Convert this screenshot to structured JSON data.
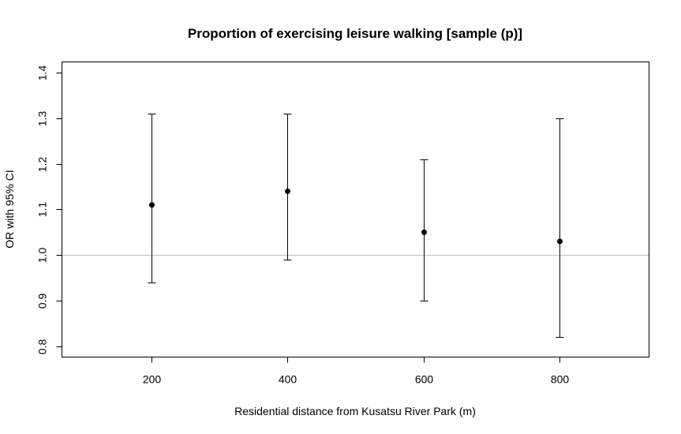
{
  "chart_data": {
    "type": "scatter",
    "subtype": "point-with-error-bars",
    "title": "Proportion of exercising leisure walking [sample (p)]",
    "xlabel": "Residential distance from Kusatsu River Park (m)",
    "ylabel": "OR with 95% CI",
    "xlim": [
      100,
      900
    ],
    "ylim": [
      0.8,
      1.4
    ],
    "xticks": [
      200,
      400,
      600,
      800
    ],
    "xtick_labels": [
      "200",
      "400",
      "600",
      "800"
    ],
    "yticks": [
      0.8,
      0.9,
      1.0,
      1.1,
      1.2,
      1.3,
      1.4
    ],
    "ytick_labels": [
      "0.8",
      "0.9",
      "1.0",
      "1.1",
      "1.2",
      "1.3",
      "1.4"
    ],
    "grid": false,
    "legend": null,
    "reference_line": {
      "y": 1.0,
      "color": "#bebebe"
    },
    "series": [
      {
        "name": "OR",
        "x": [
          200,
          400,
          600,
          800
        ],
        "y": [
          1.11,
          1.14,
          1.05,
          1.03
        ],
        "lower": [
          0.94,
          0.99,
          0.9,
          0.82
        ],
        "upper": [
          1.31,
          1.31,
          1.21,
          1.3
        ],
        "color": "#000000"
      }
    ]
  }
}
